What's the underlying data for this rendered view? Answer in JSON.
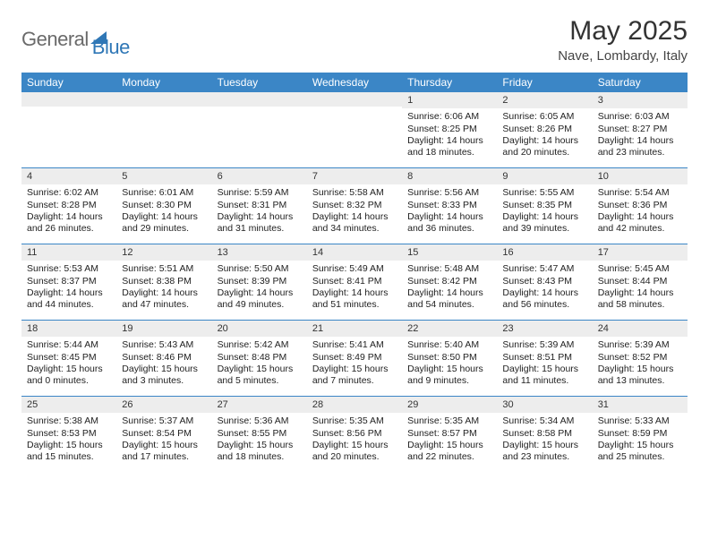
{
  "branding": {
    "text_general": "General",
    "text_blue": "Blue"
  },
  "title": "May 2025",
  "subtitle": "Nave, Lombardy, Italy",
  "colors": {
    "header_bg": "#3b86c6",
    "header_text": "#ffffff",
    "daynum_bg": "#ededed",
    "week_divider": "#3b86c6",
    "logo_gray": "#6a6a6a",
    "logo_blue": "#2f77b6",
    "body_bg": "#ffffff",
    "text_color": "#222222"
  },
  "day_headers": [
    "Sunday",
    "Monday",
    "Tuesday",
    "Wednesday",
    "Thursday",
    "Friday",
    "Saturday"
  ],
  "weeks": [
    [
      {
        "empty": true
      },
      {
        "empty": true
      },
      {
        "empty": true
      },
      {
        "empty": true
      },
      {
        "day": "1",
        "sunrise": "Sunrise: 6:06 AM",
        "sunset": "Sunset: 8:25 PM",
        "daylight": "Daylight: 14 hours and 18 minutes."
      },
      {
        "day": "2",
        "sunrise": "Sunrise: 6:05 AM",
        "sunset": "Sunset: 8:26 PM",
        "daylight": "Daylight: 14 hours and 20 minutes."
      },
      {
        "day": "3",
        "sunrise": "Sunrise: 6:03 AM",
        "sunset": "Sunset: 8:27 PM",
        "daylight": "Daylight: 14 hours and 23 minutes."
      }
    ],
    [
      {
        "day": "4",
        "sunrise": "Sunrise: 6:02 AM",
        "sunset": "Sunset: 8:28 PM",
        "daylight": "Daylight: 14 hours and 26 minutes."
      },
      {
        "day": "5",
        "sunrise": "Sunrise: 6:01 AM",
        "sunset": "Sunset: 8:30 PM",
        "daylight": "Daylight: 14 hours and 29 minutes."
      },
      {
        "day": "6",
        "sunrise": "Sunrise: 5:59 AM",
        "sunset": "Sunset: 8:31 PM",
        "daylight": "Daylight: 14 hours and 31 minutes."
      },
      {
        "day": "7",
        "sunrise": "Sunrise: 5:58 AM",
        "sunset": "Sunset: 8:32 PM",
        "daylight": "Daylight: 14 hours and 34 minutes."
      },
      {
        "day": "8",
        "sunrise": "Sunrise: 5:56 AM",
        "sunset": "Sunset: 8:33 PM",
        "daylight": "Daylight: 14 hours and 36 minutes."
      },
      {
        "day": "9",
        "sunrise": "Sunrise: 5:55 AM",
        "sunset": "Sunset: 8:35 PM",
        "daylight": "Daylight: 14 hours and 39 minutes."
      },
      {
        "day": "10",
        "sunrise": "Sunrise: 5:54 AM",
        "sunset": "Sunset: 8:36 PM",
        "daylight": "Daylight: 14 hours and 42 minutes."
      }
    ],
    [
      {
        "day": "11",
        "sunrise": "Sunrise: 5:53 AM",
        "sunset": "Sunset: 8:37 PM",
        "daylight": "Daylight: 14 hours and 44 minutes."
      },
      {
        "day": "12",
        "sunrise": "Sunrise: 5:51 AM",
        "sunset": "Sunset: 8:38 PM",
        "daylight": "Daylight: 14 hours and 47 minutes."
      },
      {
        "day": "13",
        "sunrise": "Sunrise: 5:50 AM",
        "sunset": "Sunset: 8:39 PM",
        "daylight": "Daylight: 14 hours and 49 minutes."
      },
      {
        "day": "14",
        "sunrise": "Sunrise: 5:49 AM",
        "sunset": "Sunset: 8:41 PM",
        "daylight": "Daylight: 14 hours and 51 minutes."
      },
      {
        "day": "15",
        "sunrise": "Sunrise: 5:48 AM",
        "sunset": "Sunset: 8:42 PM",
        "daylight": "Daylight: 14 hours and 54 minutes."
      },
      {
        "day": "16",
        "sunrise": "Sunrise: 5:47 AM",
        "sunset": "Sunset: 8:43 PM",
        "daylight": "Daylight: 14 hours and 56 minutes."
      },
      {
        "day": "17",
        "sunrise": "Sunrise: 5:45 AM",
        "sunset": "Sunset: 8:44 PM",
        "daylight": "Daylight: 14 hours and 58 minutes."
      }
    ],
    [
      {
        "day": "18",
        "sunrise": "Sunrise: 5:44 AM",
        "sunset": "Sunset: 8:45 PM",
        "daylight": "Daylight: 15 hours and 0 minutes."
      },
      {
        "day": "19",
        "sunrise": "Sunrise: 5:43 AM",
        "sunset": "Sunset: 8:46 PM",
        "daylight": "Daylight: 15 hours and 3 minutes."
      },
      {
        "day": "20",
        "sunrise": "Sunrise: 5:42 AM",
        "sunset": "Sunset: 8:48 PM",
        "daylight": "Daylight: 15 hours and 5 minutes."
      },
      {
        "day": "21",
        "sunrise": "Sunrise: 5:41 AM",
        "sunset": "Sunset: 8:49 PM",
        "daylight": "Daylight: 15 hours and 7 minutes."
      },
      {
        "day": "22",
        "sunrise": "Sunrise: 5:40 AM",
        "sunset": "Sunset: 8:50 PM",
        "daylight": "Daylight: 15 hours and 9 minutes."
      },
      {
        "day": "23",
        "sunrise": "Sunrise: 5:39 AM",
        "sunset": "Sunset: 8:51 PM",
        "daylight": "Daylight: 15 hours and 11 minutes."
      },
      {
        "day": "24",
        "sunrise": "Sunrise: 5:39 AM",
        "sunset": "Sunset: 8:52 PM",
        "daylight": "Daylight: 15 hours and 13 minutes."
      }
    ],
    [
      {
        "day": "25",
        "sunrise": "Sunrise: 5:38 AM",
        "sunset": "Sunset: 8:53 PM",
        "daylight": "Daylight: 15 hours and 15 minutes."
      },
      {
        "day": "26",
        "sunrise": "Sunrise: 5:37 AM",
        "sunset": "Sunset: 8:54 PM",
        "daylight": "Daylight: 15 hours and 17 minutes."
      },
      {
        "day": "27",
        "sunrise": "Sunrise: 5:36 AM",
        "sunset": "Sunset: 8:55 PM",
        "daylight": "Daylight: 15 hours and 18 minutes."
      },
      {
        "day": "28",
        "sunrise": "Sunrise: 5:35 AM",
        "sunset": "Sunset: 8:56 PM",
        "daylight": "Daylight: 15 hours and 20 minutes."
      },
      {
        "day": "29",
        "sunrise": "Sunrise: 5:35 AM",
        "sunset": "Sunset: 8:57 PM",
        "daylight": "Daylight: 15 hours and 22 minutes."
      },
      {
        "day": "30",
        "sunrise": "Sunrise: 5:34 AM",
        "sunset": "Sunset: 8:58 PM",
        "daylight": "Daylight: 15 hours and 23 minutes."
      },
      {
        "day": "31",
        "sunrise": "Sunrise: 5:33 AM",
        "sunset": "Sunset: 8:59 PM",
        "daylight": "Daylight: 15 hours and 25 minutes."
      }
    ]
  ]
}
